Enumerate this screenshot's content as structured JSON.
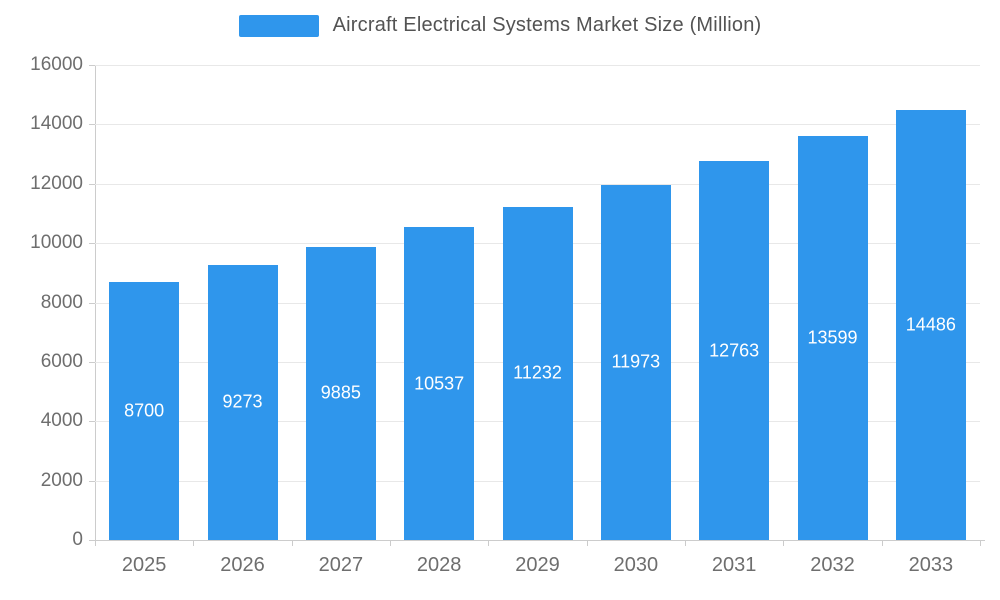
{
  "chart_data": {
    "type": "bar",
    "title": "Aircraft Electrical Systems Market Size (Million)",
    "categories": [
      "2025",
      "2026",
      "2027",
      "2028",
      "2029",
      "2030",
      "2031",
      "2032",
      "2033"
    ],
    "values": [
      8700,
      9273,
      9885,
      10537,
      11232,
      11973,
      12763,
      13599,
      14486
    ],
    "series_name": "Aircraft Electrical Systems Market Size (Million)",
    "xlabel": "",
    "ylabel": "",
    "ylim": [
      0,
      16000
    ],
    "ytick_interval": 2000,
    "yticks": [
      "0",
      "2000",
      "4000",
      "6000",
      "8000",
      "10000",
      "12000",
      "14000",
      "16000"
    ],
    "grid": "horizontal",
    "legend_position": "top-center",
    "bar_color": "#2F96EC",
    "value_label_color": "#ffffff",
    "axis_color": "#cccccc",
    "tick_label_color": "#6e6e6e",
    "background_color": "#ffffff"
  }
}
